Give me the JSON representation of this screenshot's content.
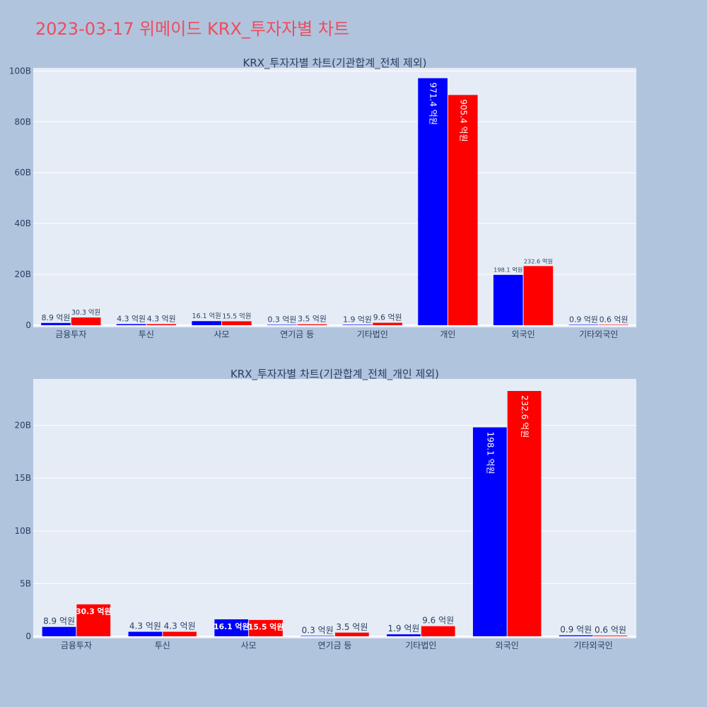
{
  "page": {
    "title": "2023-03-17 위메이드 KRX_투자자별 차트",
    "title_color": "#ef4b5c",
    "background": "#b0c4de",
    "plot_background": "#e5ecf6"
  },
  "chart_data": [
    {
      "type": "bar",
      "title": "KRX_투자자별 차트(기관합계_전체 제외)",
      "categories": [
        "금융투자",
        "투신",
        "사모",
        "연기금 등",
        "기타법인",
        "개인",
        "외국인",
        "기타외국인"
      ],
      "series": [
        {
          "color": "#0000ff",
          "values": [
            0.89,
            0.43,
            1.61,
            0.03,
            0.19,
            97.14,
            19.81,
            0.09
          ],
          "labels": [
            "8.9 억원",
            "4.3 억원",
            "16.1 억원",
            "0.3 억원",
            "1.9 억원",
            "971.4 억원",
            "198.1 억원",
            "0.9 억원"
          ]
        },
        {
          "color": "#ff0000",
          "values": [
            3.03,
            0.43,
            1.55,
            0.35,
            0.96,
            90.54,
            23.26,
            0.06
          ],
          "labels": [
            "30.3 억원",
            "4.3 억원",
            "15.5 억원",
            "3.5 억원",
            "9.6 억원",
            "905.4 억원",
            "232.6 억원",
            "0.6 억원"
          ]
        }
      ],
      "yticks": [
        0,
        20,
        40,
        60,
        80,
        100
      ],
      "ytick_labels": [
        "0",
        "20B",
        "40B",
        "60B",
        "80B",
        "100B"
      ],
      "ylim": [
        0,
        101.2
      ],
      "grid": true
    },
    {
      "type": "bar",
      "title": "KRX_투자자별 차트(기관합계_전체_개인 제외)",
      "categories": [
        "금융투자",
        "투신",
        "사모",
        "연기금 등",
        "기타법인",
        "외국인",
        "기타외국인"
      ],
      "series": [
        {
          "color": "#0000ff",
          "values": [
            0.89,
            0.43,
            1.61,
            0.03,
            0.19,
            19.81,
            0.09
          ],
          "labels": [
            "8.9 억원",
            "4.3 억원",
            "16.1 억원",
            "0.3 억원",
            "1.9 억원",
            "198.1 억원",
            "0.9 억원"
          ]
        },
        {
          "color": "#ff0000",
          "values": [
            3.03,
            0.43,
            1.55,
            0.35,
            0.96,
            23.26,
            0.06
          ],
          "labels": [
            "30.3 억원",
            "4.3 억원",
            "15.5 억원",
            "3.5 억원",
            "9.6 억원",
            "232.6 억원",
            "0.6 억원"
          ]
        }
      ],
      "yticks": [
        0,
        5,
        10,
        15,
        20
      ],
      "ytick_labels": [
        "0",
        "5B",
        "10B",
        "15B",
        "20B"
      ],
      "ylim": [
        0,
        24.4
      ],
      "grid": true
    }
  ]
}
